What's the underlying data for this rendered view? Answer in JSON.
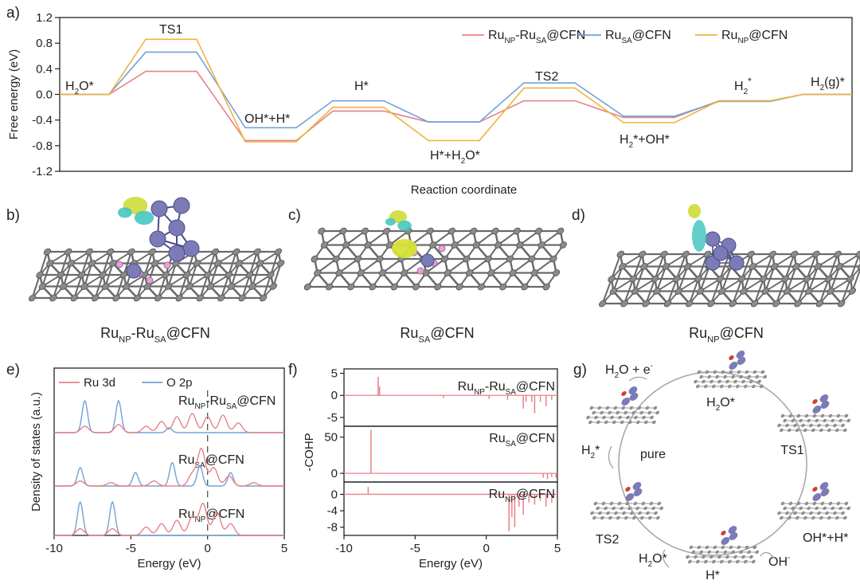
{
  "figure": {
    "panels": {
      "a": "a)",
      "b": "b)",
      "c": "c)",
      "d": "d)",
      "e": "e)",
      "f": "f)",
      "g": "g)"
    },
    "structure_labels": [
      {
        "base": "Ru",
        "sub": "NP",
        "mid": "-Ru",
        "sub2": "SA",
        "tail": "@CFN"
      },
      {
        "base": "Ru",
        "sub": "SA",
        "tail": "@CFN"
      },
      {
        "base": "Ru",
        "sub": "NP",
        "tail": "@CFN"
      }
    ]
  },
  "chart_data": [
    {
      "type": "line",
      "panel": "a",
      "xlabel": "Reaction coordinate",
      "ylabel": "Free energy (eV)",
      "ylim": [
        -1.2,
        1.2
      ],
      "yticks": [
        "1.2",
        "0.8",
        "0.4",
        "0.0",
        "-0.4",
        "-0.8",
        "-1.2"
      ],
      "yticks_values": [
        1.2,
        0.8,
        0.4,
        0.0,
        -0.4,
        -0.8,
        -1.2
      ],
      "states": [
        "H2O*",
        "TS1",
        "OH*+H*",
        "H*",
        "H*+H2O*",
        "TS2",
        "H2*+OH*",
        "H2*",
        "H2(g)*"
      ],
      "state_labels": [
        {
          "base": "H",
          "sub": "2",
          "tail": "O*"
        },
        {
          "base": "TS1"
        },
        {
          "base": "OH*+H*"
        },
        {
          "base": "H*"
        },
        {
          "base": "H*+H",
          "sub": "2",
          "tail": "O*"
        },
        {
          "base": "TS2"
        },
        {
          "base": "H",
          "sub": "2",
          "tail": "*+OH*"
        },
        {
          "base": "H",
          "sup": "*",
          "mid": "",
          "sub": "2",
          "tail": ""
        },
        {
          "base": "H",
          "sub": "2",
          "tail": "(g)*"
        }
      ],
      "series": [
        {
          "name": "RuNP-RuSA@CFN",
          "legend": {
            "base": "Ru",
            "sub": "NP",
            "mid": "-Ru",
            "sub2": "SA",
            "tail": "@CFN"
          },
          "color": "#e8808a",
          "values": [
            0.0,
            0.36,
            -0.72,
            -0.26,
            -0.43,
            -0.1,
            -0.36,
            -0.1,
            0.0
          ]
        },
        {
          "name": "RuSA@CFN",
          "legend": {
            "base": "Ru",
            "sub": "SA",
            "tail": "@CFN"
          },
          "color": "#6fa3d8",
          "values": [
            0.0,
            0.66,
            -0.52,
            -0.1,
            -0.43,
            0.18,
            -0.34,
            -0.11,
            0.0
          ]
        },
        {
          "name": "RuNP@CFN",
          "legend": {
            "base": "Ru",
            "sub": "NP",
            "tail": "@CFN"
          },
          "color": "#f0b43c",
          "values": [
            0.0,
            0.86,
            -0.74,
            -0.2,
            -0.72,
            0.1,
            -0.44,
            -0.1,
            0.0
          ]
        }
      ],
      "legend_position": "top-right"
    },
    {
      "type": "line",
      "panel": "e",
      "xlabel": "Energy (eV)",
      "ylabel": "Density of states (a.u.)",
      "xlim": [
        -10,
        5
      ],
      "xticks": [
        "-10",
        "-5",
        "0",
        "5"
      ],
      "series": [
        {
          "name": "Ru 3d",
          "color": "#e8808a"
        },
        {
          "name": "O 2p",
          "color": "#6fa3d8"
        }
      ],
      "subplots": [
        {
          "label": {
            "base": "Ru",
            "sub": "NP",
            "mid": "-Ru",
            "sub2": "SA",
            "tail": "@CFN"
          },
          "o2p_peaks": [
            [
              -8.0,
              1.0
            ],
            [
              -5.8,
              1.0
            ],
            [
              -2.5,
              0.15
            ]
          ],
          "ru3d_peaks": [
            [
              -8.0,
              0.2
            ],
            [
              -5.8,
              0.25
            ],
            [
              -4.0,
              0.2
            ],
            [
              -3.0,
              0.35
            ],
            [
              -2.0,
              0.5
            ],
            [
              -1.0,
              0.6
            ],
            [
              0.0,
              0.5
            ],
            [
              1.0,
              0.55
            ],
            [
              2.0,
              0.3
            ]
          ]
        },
        {
          "label": {
            "base": "Ru",
            "sub": "SA",
            "tail": "@CFN"
          },
          "o2p_peaks": [
            [
              -8.3,
              0.55
            ],
            [
              -4.7,
              0.4
            ],
            [
              -2.3,
              0.7
            ],
            [
              -0.5,
              0.6
            ],
            [
              1.5,
              0.4
            ]
          ],
          "ru3d_peaks": [
            [
              -8.3,
              0.15
            ],
            [
              -6.3,
              0.1
            ],
            [
              -3.5,
              0.15
            ],
            [
              -1.0,
              0.35
            ],
            [
              -0.4,
              1.1
            ],
            [
              0.4,
              0.55
            ],
            [
              1.4,
              0.3
            ],
            [
              3.0,
              0.1
            ]
          ]
        },
        {
          "label": {
            "base": "Ru",
            "sub": "NP",
            "tail": "@CFN"
          },
          "o2p_peaks": [
            [
              -8.3,
              1.0
            ],
            [
              -6.2,
              1.0
            ]
          ],
          "ru3d_peaks": [
            [
              -8.3,
              0.2
            ],
            [
              -6.2,
              0.2
            ],
            [
              -4.0,
              0.25
            ],
            [
              -3.0,
              0.35
            ],
            [
              -2.0,
              0.45
            ],
            [
              -1.0,
              0.55
            ],
            [
              -0.3,
              0.95
            ],
            [
              0.6,
              0.7
            ],
            [
              1.5,
              0.35
            ]
          ]
        }
      ]
    },
    {
      "type": "bar",
      "panel": "f",
      "xlabel": "Energy (eV)",
      "ylabel": "-COHP",
      "xlim": [
        -10,
        5
      ],
      "xticks": [
        "-10",
        "-5",
        "0",
        "5"
      ],
      "subplots": [
        {
          "label": {
            "base": "Ru",
            "sub": "NP",
            "mid": "-Ru",
            "sub2": "SA",
            "tail": "@CFN"
          },
          "ylim": [
            -7,
            6
          ],
          "yticks": [
            "5",
            "0",
            "-5"
          ],
          "yticks_values": [
            5,
            0,
            -5
          ],
          "spikes": [
            [
              -7.6,
              4.2
            ],
            [
              -7.5,
              2.0
            ],
            [
              -3.0,
              -0.6
            ],
            [
              0.2,
              -0.8
            ],
            [
              1.5,
              -1.0
            ],
            [
              2.6,
              -3.0
            ],
            [
              2.8,
              -1.5
            ],
            [
              3.2,
              -1.5
            ],
            [
              3.4,
              -4.0
            ],
            [
              3.8,
              -1.5
            ],
            [
              4.2,
              -2.5
            ],
            [
              4.6,
              -1.0
            ]
          ]
        },
        {
          "label": {
            "base": "Ru",
            "sub": "SA",
            "tail": "@CFN"
          },
          "ylim": [
            -12,
            65
          ],
          "yticks": [
            "50",
            "0"
          ],
          "yticks_values": [
            50,
            0
          ],
          "spikes": [
            [
              -8.1,
              60
            ],
            [
              4.0,
              -6
            ],
            [
              4.3,
              -8
            ],
            [
              4.6,
              -5
            ],
            [
              4.9,
              -6
            ]
          ]
        },
        {
          "label": {
            "base": "Ru",
            "sub": "NP",
            "tail": "@CFN"
          },
          "ylim": [
            -10,
            3
          ],
          "yticks": [
            "0",
            "-4",
            "-8"
          ],
          "yticks_values": [
            0,
            -4,
            -8
          ],
          "spikes": [
            [
              -8.3,
              1.8
            ],
            [
              1.6,
              -9
            ],
            [
              1.8,
              -5.5
            ],
            [
              2.0,
              -8
            ],
            [
              2.3,
              -3
            ],
            [
              2.6,
              -5
            ],
            [
              3.0,
              -2
            ],
            [
              3.4,
              -2.5
            ],
            [
              3.8,
              -1.5
            ],
            [
              4.2,
              -3
            ],
            [
              4.6,
              -2
            ]
          ]
        }
      ]
    }
  ],
  "cycle": {
    "nodes": [
      "H2O*",
      "TS1",
      "OH*+H*",
      "H*",
      "TS2",
      "pure"
    ],
    "node_labels": [
      {
        "base": "H",
        "sub": "2",
        "tail": "O*"
      },
      {
        "base": "TS1"
      },
      {
        "base": "OH*+H*"
      },
      {
        "base": "H*"
      },
      {
        "base": "TS2"
      },
      {
        "base": "pure"
      }
    ],
    "reagents": [
      {
        "base": "H",
        "sub": "2",
        "tail": "O + e",
        "sup": "-"
      },
      {
        "base": "OH",
        "sup": "-"
      },
      {
        "base": "H",
        "sub": "2",
        "tail": "O*"
      },
      {
        "base": "H",
        "sub": "2",
        "tail": "*"
      }
    ]
  }
}
